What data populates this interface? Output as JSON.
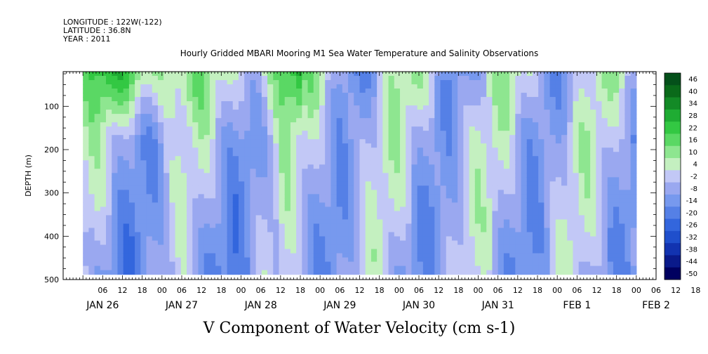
{
  "header": {
    "longitude": "LONGITUDE : 122W(-122)",
    "latitude": "LATITUDE : 36.8N",
    "year": "YEAR : 2011"
  },
  "chart_data": {
    "type": "heatmap",
    "title": "Hourly Gridded MBARI Mooring M1 Sea Water Temperature and Salinity Observations",
    "caption": "V Component of Water Velocity (cm s-1)",
    "ylabel": "DEPTH (m)",
    "xlabel": "",
    "y_axis": {
      "ticks": [
        100,
        200,
        300,
        400,
        500
      ],
      "tick_labels": [
        "100",
        "200",
        "300",
        "400",
        "500"
      ],
      "range": [
        20,
        500
      ],
      "inverted": true
    },
    "x_axis": {
      "range_hours_from_jan26_00": [
        -6,
        174
      ],
      "hour_tick_labels": [
        "06",
        "12",
        "18",
        "00",
        "06",
        "12",
        "18",
        "00",
        "06",
        "12",
        "18",
        "00",
        "06",
        "12",
        "18",
        "00",
        "06",
        "12",
        "18",
        "00",
        "06",
        "12",
        "18",
        "00",
        "06",
        "12",
        "18",
        "00",
        "06",
        "12",
        "18",
        "00"
      ],
      "day_labels": [
        "JAN 26",
        "JAN 27",
        "JAN 28",
        "JAN 29",
        "JAN 30",
        "JAN 31",
        "FEB  1",
        "FEB  2"
      ]
    },
    "data_range_hours": [
      0,
      168
    ],
    "depth_range": [
      20,
      488
    ],
    "colorbar": {
      "levels": [
        -50,
        -44,
        -38,
        -32,
        -26,
        -20,
        -14,
        -8,
        -2,
        4,
        10,
        16,
        22,
        28,
        34,
        40,
        46
      ],
      "labels": [
        "46",
        "40",
        "34",
        "28",
        "22",
        "16",
        "10",
        "4",
        "-2",
        "-8",
        "-14",
        "-20",
        "-26",
        "-32",
        "-38",
        "-44",
        "-50"
      ],
      "colors": [
        "#000060",
        "#0a1a8a",
        "#1233b0",
        "#1f4fcc",
        "#3366dd",
        "#5580e6",
        "#7799ee",
        "#9aa8f0",
        "#c2c8f6",
        "#c4f0c0",
        "#8ee690",
        "#5ad864",
        "#33c843",
        "#1fac33",
        "#138a26",
        "#0a6a1a",
        "#04501a"
      ]
    },
    "grid": false
  }
}
